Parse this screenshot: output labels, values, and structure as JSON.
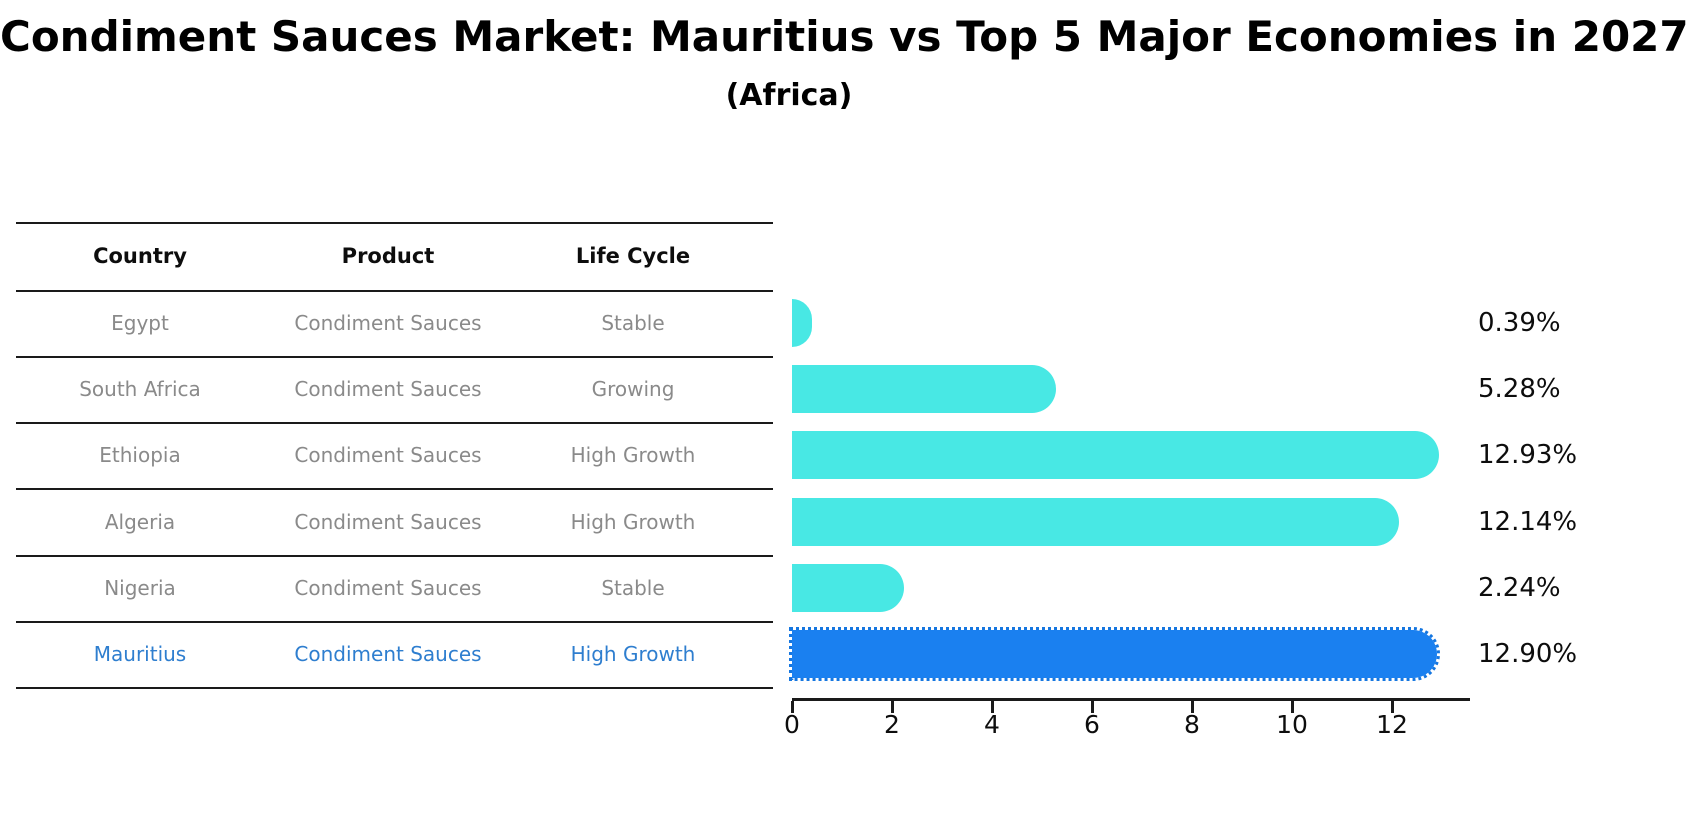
{
  "title": "Condiment Sauces Market: Mauritius vs Top 5 Major Economies in 2027",
  "subtitle": "(Africa)",
  "table": {
    "headers": [
      "Country",
      "Product",
      "Life Cycle"
    ],
    "rows": [
      {
        "country": "Egypt",
        "product": "Condiment Sauces",
        "life_cycle": "Stable",
        "highlight": false
      },
      {
        "country": "South Africa",
        "product": "Condiment Sauces",
        "life_cycle": "Growing",
        "highlight": false
      },
      {
        "country": "Ethiopia",
        "product": "Condiment Sauces",
        "life_cycle": "High Growth",
        "highlight": false
      },
      {
        "country": "Algeria",
        "product": "Condiment Sauces",
        "life_cycle": "High Growth",
        "highlight": false
      },
      {
        "country": "Nigeria",
        "product": "Condiment Sauces",
        "life_cycle": "Stable",
        "highlight": false
      },
      {
        "country": "Mauritius",
        "product": "Condiment Sauces",
        "life_cycle": "High Growth",
        "highlight": true
      }
    ]
  },
  "chart_data": {
    "type": "bar",
    "orientation": "horizontal",
    "title": "Condiment Sauces Market: Mauritius vs Top 5 Major Economies in 2027 (Africa)",
    "categories": [
      "Egypt",
      "South Africa",
      "Ethiopia",
      "Algeria",
      "Nigeria",
      "Mauritius"
    ],
    "values": [
      0.39,
      5.28,
      12.93,
      12.14,
      2.24,
      12.9
    ],
    "value_labels": [
      "0.39%",
      "5.28%",
      "12.93%",
      "12.14%",
      "2.24%",
      "12.90%"
    ],
    "xlabel": "",
    "ylabel": "",
    "xticks": [
      0,
      2,
      4,
      6,
      8,
      10,
      12
    ],
    "xlim": [
      0,
      13.6
    ],
    "grid": false,
    "legend": false,
    "highlight_index": 5
  },
  "colors": {
    "bar_color": "#48e8e4",
    "highlight_bar_color": "#1a80f0",
    "highlight_outline_color": "#1576e0",
    "highlight_text_color": "#2e7ecf",
    "row_text_color": "#8a8a8a",
    "header_text_color": "#0d0d0d",
    "line_color": "#1a1a1a"
  }
}
